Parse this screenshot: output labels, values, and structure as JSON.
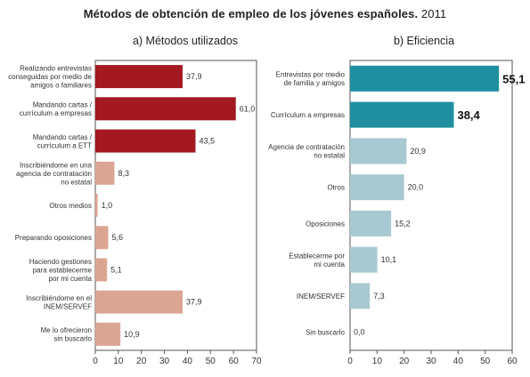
{
  "title": {
    "main": "Métodos de obtención de empleo de los jóvenes españoles.",
    "year": "2011"
  },
  "chart_data": [
    {
      "type": "bar",
      "orientation": "horizontal",
      "subtitle": "a)  Métodos utilizados",
      "xlim": [
        0,
        70
      ],
      "xticks": [
        "0",
        "10",
        "20",
        "30",
        "40",
        "50",
        "60",
        "70"
      ],
      "grid": false,
      "categories": [
        [
          "Realizando entrevistas",
          "conseguidas por medio de",
          "amigos o familiares"
        ],
        [
          "Mandando cartas /",
          "currículum a empresas"
        ],
        [
          "Mandando cartas /",
          "currículum a ETT"
        ],
        [
          "Inscribiéndome en una",
          "agencia de contratación",
          "no estatal"
        ],
        [
          "Otros medios"
        ],
        [
          "Preparando oposiciones"
        ],
        [
          "Haciendo gestiones",
          "para establecerme",
          "por mi cuenta"
        ],
        [
          "Inscribiéndome en el",
          "INEM/SERVEF"
        ],
        [
          "Me lo ofrecieron",
          "sin buscarlo"
        ]
      ],
      "values": [
        37.9,
        61.0,
        43.5,
        8.3,
        1.0,
        5.6,
        5.1,
        37.9,
        10.9
      ],
      "labels": [
        "37,9",
        "61,0",
        "43,5",
        "8,3",
        "1,0",
        "5,6",
        "5,1",
        "37,9",
        "10,9"
      ],
      "highlight": [
        true,
        true,
        true,
        false,
        false,
        false,
        false,
        false,
        false
      ],
      "colors": {
        "highlight": "#a41820",
        "normal": "#dba593"
      }
    },
    {
      "type": "bar",
      "orientation": "horizontal",
      "subtitle": "b)  Eficiencia",
      "xlim": [
        0,
        60
      ],
      "xticks": [
        "0",
        "10",
        "20",
        "30",
        "40",
        "50",
        "60"
      ],
      "grid": false,
      "categories": [
        [
          "Entrevistas por medio",
          "de familia y amigos"
        ],
        [
          "Currículum a empresas"
        ],
        [
          "Agencia de contratación",
          "no estatal"
        ],
        [
          "Otros"
        ],
        [
          "Oposiciones"
        ],
        [
          "Establecerme por",
          "mi cuenta"
        ],
        [
          "INEM/SERVEF"
        ],
        [
          "Sin buscarlo"
        ]
      ],
      "values": [
        55.1,
        38.4,
        20.9,
        20.0,
        15.2,
        10.1,
        7.3,
        0.0
      ],
      "labels": [
        "55,1",
        "38,4",
        "20,9",
        "20,0",
        "15,2",
        "10,1",
        "7,3",
        "0,0"
      ],
      "highlight": [
        true,
        true,
        false,
        false,
        false,
        false,
        false,
        false
      ],
      "colors": {
        "highlight": "#1f8f9f",
        "normal": "#a8c9d1"
      }
    }
  ]
}
